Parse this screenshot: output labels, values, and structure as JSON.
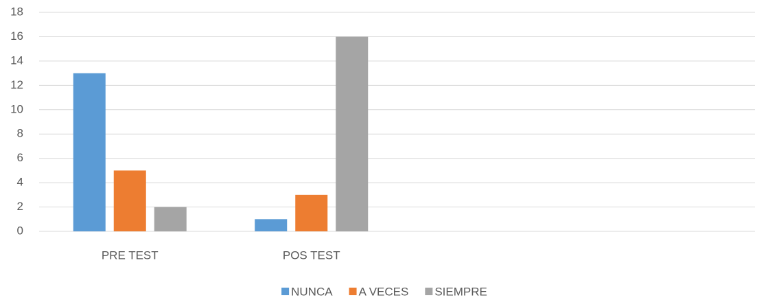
{
  "chart_data": {
    "type": "bar",
    "categories": [
      "PRE TEST",
      "POS TEST",
      null,
      null
    ],
    "series": [
      {
        "name": "NUNCA",
        "color": "#5b9bd5",
        "values": [
          13,
          1,
          null,
          null
        ]
      },
      {
        "name": "A VECES",
        "color": "#ed7d31",
        "values": [
          5,
          3,
          null,
          null
        ]
      },
      {
        "name": "SIEMPRE",
        "color": "#a5a5a5",
        "values": [
          2,
          16,
          null,
          null
        ]
      }
    ],
    "ylim": [
      0,
      18
    ],
    "yticks": [
      0,
      2,
      4,
      6,
      8,
      10,
      12,
      14,
      16,
      18
    ],
    "grid": true,
    "legend": "bottom"
  }
}
